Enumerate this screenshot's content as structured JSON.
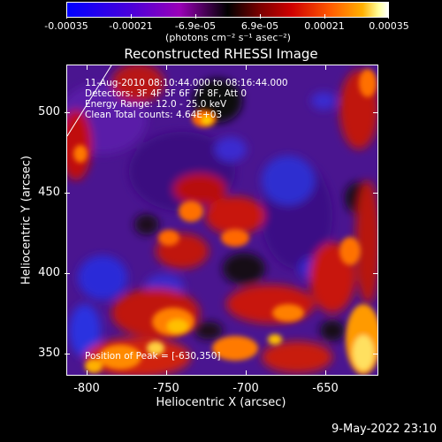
{
  "colorbar": {
    "labels": [
      "-0.00035",
      "-0.00021",
      "-6.9e-05",
      "6.9e-05",
      "0.00021",
      "0.00035"
    ],
    "units": "(photons cm⁻² s⁻¹ asec⁻²)"
  },
  "title": "Reconstructed RHESSI Image",
  "annotations": {
    "time": "11-Aug-2010 08:10:44.000 to 08:16:44.000",
    "detectors": "Detectors: 3F 4F 5F 6F 7F 8F, Att 0",
    "energy": "Energy Range: 12.0 - 25.0 keV",
    "clean": "Clean    Total counts: 4.64E+03",
    "peak": "Position of Peak = [-630,350]"
  },
  "axes": {
    "xlabel": "Heliocentric X (arcsec)",
    "ylabel": "Heliocentric Y (arcsec)",
    "xticks": [
      "-800",
      "-750",
      "-700",
      "-650"
    ],
    "yticks": [
      "500",
      "450",
      "400",
      "350"
    ]
  },
  "footer": "9-May-2022 23:10"
}
